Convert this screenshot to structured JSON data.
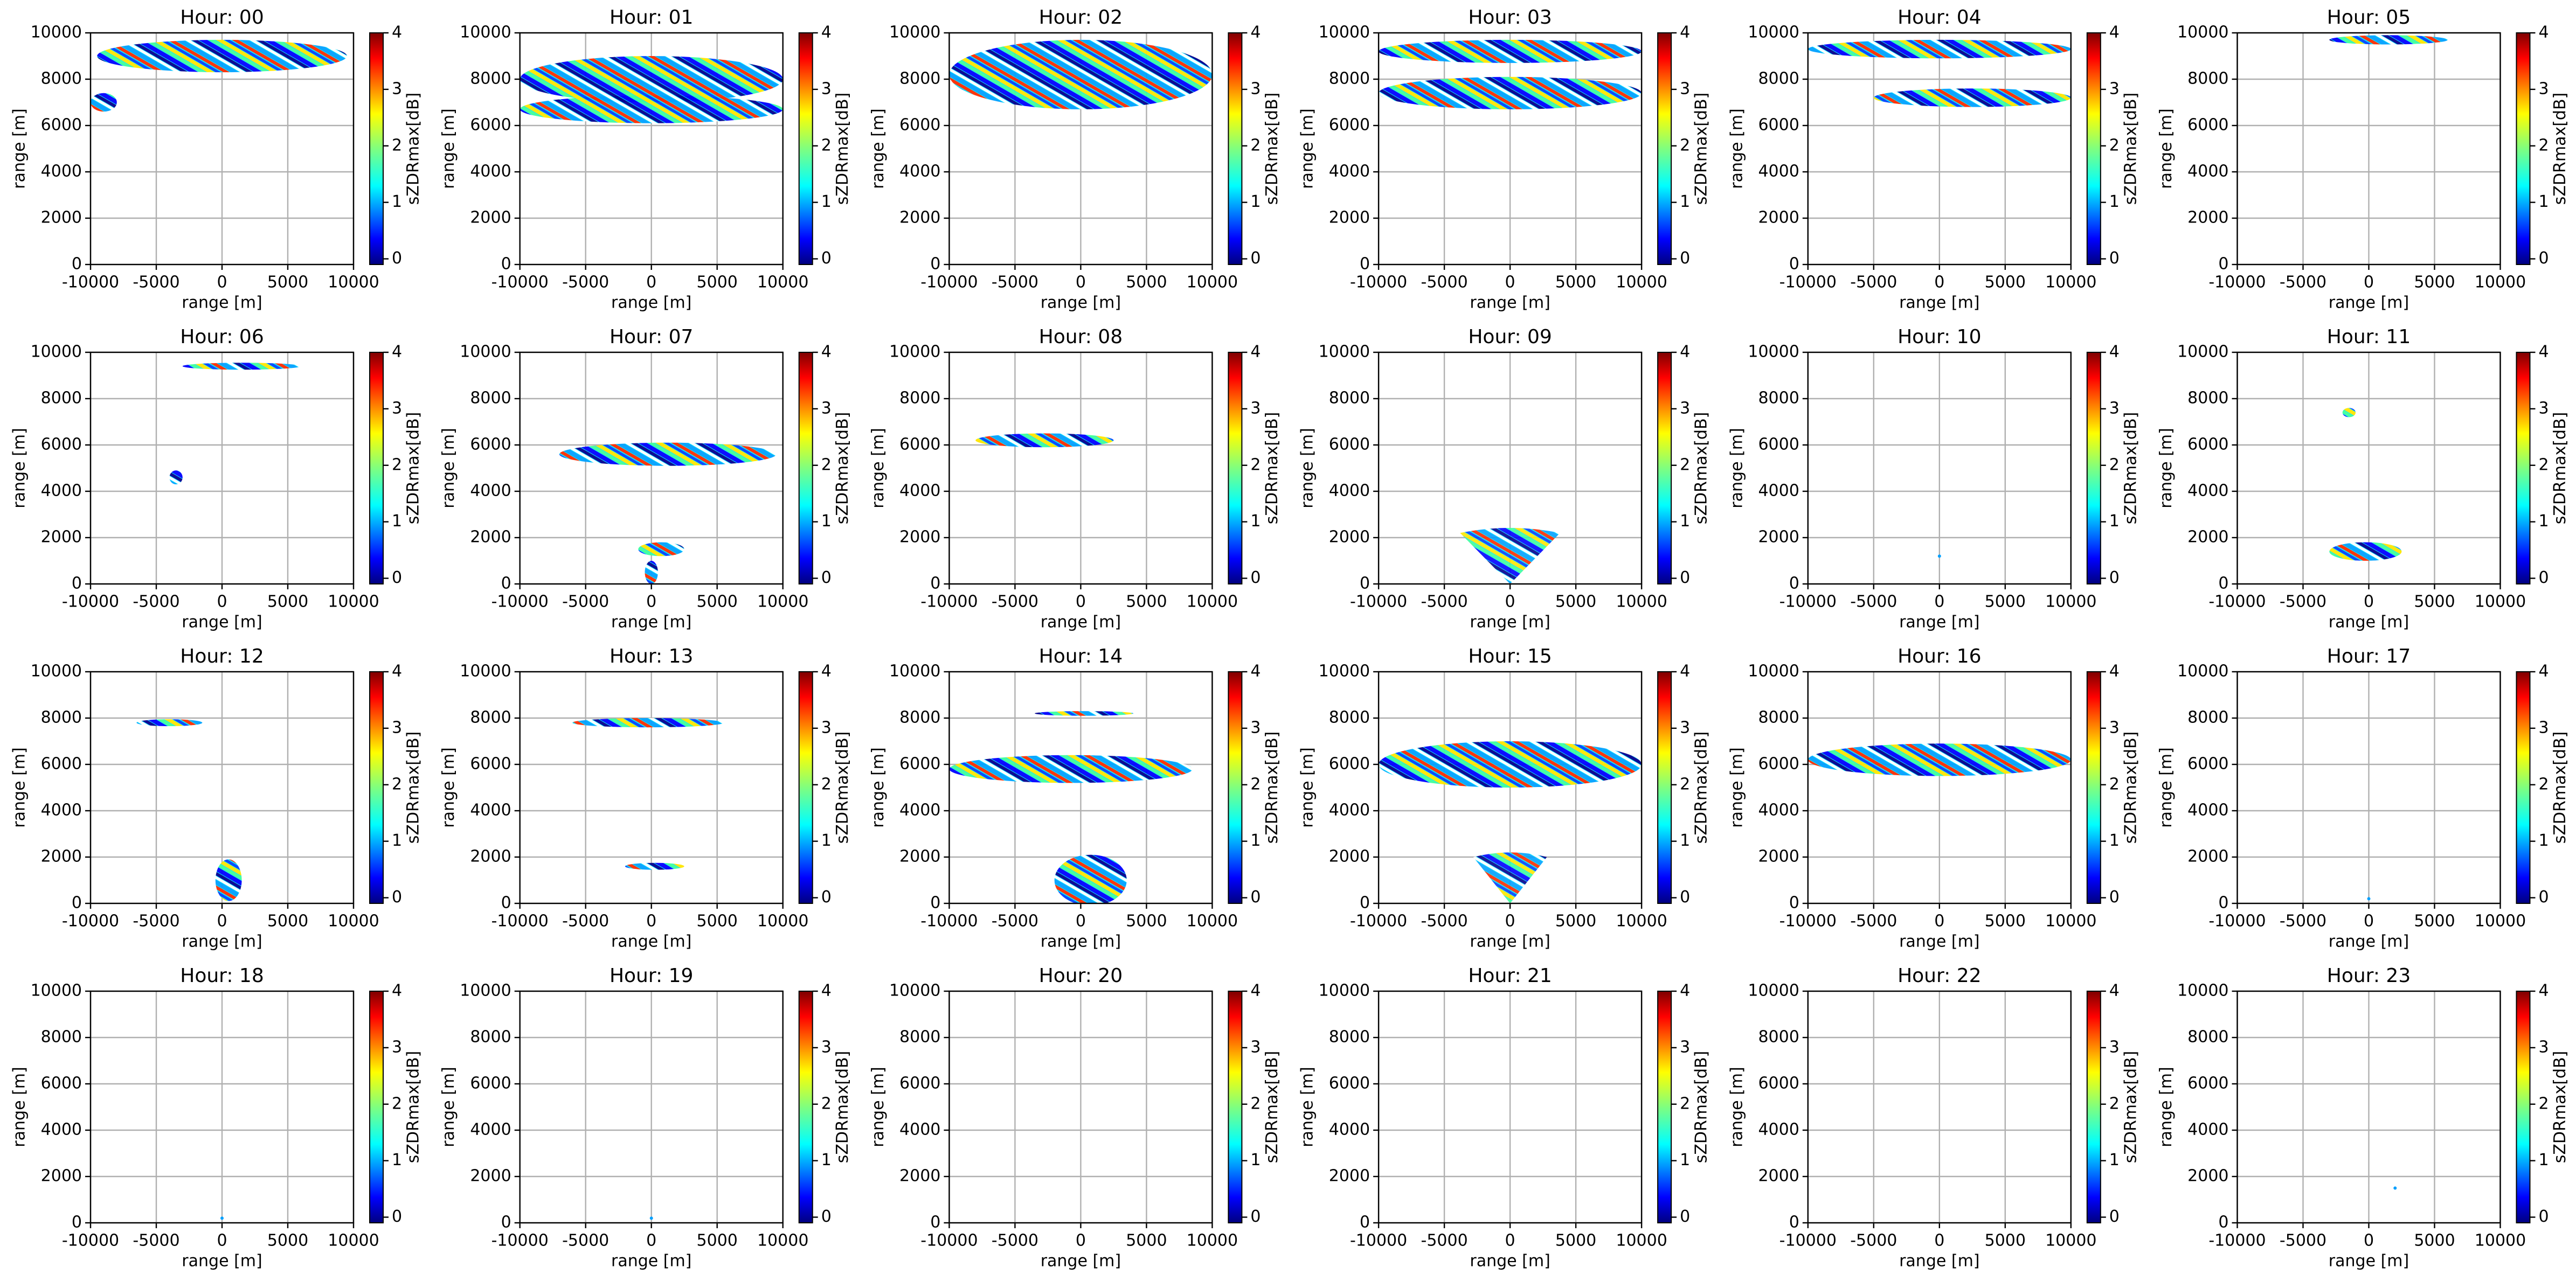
{
  "chart_data": [
    {
      "type": "heatmap",
      "title": "Hour: 00",
      "xlabel": "range [m]",
      "ylabel": "range [m]",
      "xlim": [
        -10000,
        10000
      ],
      "xticks": [
        -10000,
        -5000,
        0,
        5000,
        10000
      ],
      "ylim": [
        0,
        10000
      ],
      "yticks": [
        0,
        2000,
        4000,
        6000,
        8000,
        10000
      ],
      "colorbar_label": "sZDRmax[dB]",
      "clim": [
        -0.1,
        4
      ],
      "cticks": [
        0,
        1,
        2,
        3,
        4
      ],
      "colormap": "jet",
      "grid": true
    },
    {
      "type": "heatmap",
      "title": "Hour: 01",
      "xlabel": "range [m]",
      "ylabel": "range [m]",
      "xlim": [
        -10000,
        10000
      ],
      "xticks": [
        -10000,
        -5000,
        0,
        5000,
        10000
      ],
      "ylim": [
        0,
        10000
      ],
      "yticks": [
        0,
        2000,
        4000,
        6000,
        8000,
        10000
      ],
      "colorbar_label": "sZDRmax[dB]",
      "clim": [
        -0.1,
        4
      ],
      "cticks": [
        0,
        1,
        2,
        3,
        4
      ],
      "colormap": "jet",
      "grid": true
    },
    {
      "type": "heatmap",
      "title": "Hour: 02",
      "xlabel": "range [m]",
      "ylabel": "range [m]",
      "xlim": [
        -10000,
        10000
      ],
      "xticks": [
        -10000,
        -5000,
        0,
        5000,
        10000
      ],
      "ylim": [
        0,
        10000
      ],
      "yticks": [
        0,
        2000,
        4000,
        6000,
        8000,
        10000
      ],
      "colorbar_label": "sZDRmax[dB]",
      "clim": [
        -0.1,
        4
      ],
      "cticks": [
        0,
        1,
        2,
        3,
        4
      ],
      "colormap": "jet",
      "grid": true
    },
    {
      "type": "heatmap",
      "title": "Hour: 03",
      "xlabel": "range [m]",
      "ylabel": "range [m]",
      "xlim": [
        -10000,
        10000
      ],
      "xticks": [
        -10000,
        -5000,
        0,
        5000,
        10000
      ],
      "ylim": [
        0,
        10000
      ],
      "yticks": [
        0,
        2000,
        4000,
        6000,
        8000,
        10000
      ],
      "colorbar_label": "sZDRmax[dB]",
      "clim": [
        -0.1,
        4
      ],
      "cticks": [
        0,
        1,
        2,
        3,
        4
      ],
      "colormap": "jet",
      "grid": true
    },
    {
      "type": "heatmap",
      "title": "Hour: 04",
      "xlabel": "range [m]",
      "ylabel": "range [m]",
      "xlim": [
        -10000,
        10000
      ],
      "xticks": [
        -10000,
        -5000,
        0,
        5000,
        10000
      ],
      "ylim": [
        0,
        10000
      ],
      "yticks": [
        0,
        2000,
        4000,
        6000,
        8000,
        10000
      ],
      "colorbar_label": "sZDRmax[dB]",
      "clim": [
        -0.1,
        4
      ],
      "cticks": [
        0,
        1,
        2,
        3,
        4
      ],
      "colormap": "jet",
      "grid": true
    },
    {
      "type": "heatmap",
      "title": "Hour: 05",
      "xlabel": "range [m]",
      "ylabel": "range [m]",
      "xlim": [
        -10000,
        10000
      ],
      "xticks": [
        -10000,
        -5000,
        0,
        5000,
        10000
      ],
      "ylim": [
        0,
        10000
      ],
      "yticks": [
        0,
        2000,
        4000,
        6000,
        8000,
        10000
      ],
      "colorbar_label": "sZDRmax[dB]",
      "clim": [
        -0.1,
        4
      ],
      "cticks": [
        0,
        1,
        2,
        3,
        4
      ],
      "colormap": "jet",
      "grid": true
    },
    {
      "type": "heatmap",
      "title": "Hour: 06",
      "xlabel": "range [m]",
      "ylabel": "range [m]",
      "xlim": [
        -10000,
        10000
      ],
      "xticks": [
        -10000,
        -5000,
        0,
        5000,
        10000
      ],
      "ylim": [
        0,
        10000
      ],
      "yticks": [
        0,
        2000,
        4000,
        6000,
        8000,
        10000
      ],
      "colorbar_label": "sZDRmax[dB]",
      "clim": [
        -0.1,
        4
      ],
      "cticks": [
        0,
        1,
        2,
        3,
        4
      ],
      "colormap": "jet",
      "grid": true
    },
    {
      "type": "heatmap",
      "title": "Hour: 07",
      "xlabel": "range [m]",
      "ylabel": "range [m]",
      "xlim": [
        -10000,
        10000
      ],
      "xticks": [
        -10000,
        -5000,
        0,
        5000,
        10000
      ],
      "ylim": [
        0,
        10000
      ],
      "yticks": [
        0,
        2000,
        4000,
        6000,
        8000,
        10000
      ],
      "colorbar_label": "sZDRmax[dB]",
      "clim": [
        -0.1,
        4
      ],
      "cticks": [
        0,
        1,
        2,
        3,
        4
      ],
      "colormap": "jet",
      "grid": true
    },
    {
      "type": "heatmap",
      "title": "Hour: 08",
      "xlabel": "range [m]",
      "ylabel": "range [m]",
      "xlim": [
        -10000,
        10000
      ],
      "xticks": [
        -10000,
        -5000,
        0,
        5000,
        10000
      ],
      "ylim": [
        0,
        10000
      ],
      "yticks": [
        0,
        2000,
        4000,
        6000,
        8000,
        10000
      ],
      "colorbar_label": "sZDRmax[dB]",
      "clim": [
        -0.1,
        4
      ],
      "cticks": [
        0,
        1,
        2,
        3,
        4
      ],
      "colormap": "jet",
      "grid": true
    },
    {
      "type": "heatmap",
      "title": "Hour: 09",
      "xlabel": "range [m]",
      "ylabel": "range [m]",
      "xlim": [
        -10000,
        10000
      ],
      "xticks": [
        -10000,
        -5000,
        0,
        5000,
        10000
      ],
      "ylim": [
        0,
        10000
      ],
      "yticks": [
        0,
        2000,
        4000,
        6000,
        8000,
        10000
      ],
      "colorbar_label": "sZDRmax[dB]",
      "clim": [
        -0.1,
        4
      ],
      "cticks": [
        0,
        1,
        2,
        3,
        4
      ],
      "colormap": "jet",
      "grid": true
    },
    {
      "type": "heatmap",
      "title": "Hour: 10",
      "xlabel": "range [m]",
      "ylabel": "range [m]",
      "xlim": [
        -10000,
        10000
      ],
      "xticks": [
        -10000,
        -5000,
        0,
        5000,
        10000
      ],
      "ylim": [
        0,
        10000
      ],
      "yticks": [
        0,
        2000,
        4000,
        6000,
        8000,
        10000
      ],
      "colorbar_label": "sZDRmax[dB]",
      "clim": [
        -0.1,
        4
      ],
      "cticks": [
        0,
        1,
        2,
        3,
        4
      ],
      "colormap": "jet",
      "grid": true
    },
    {
      "type": "heatmap",
      "title": "Hour: 11",
      "xlabel": "range [m]",
      "ylabel": "range [m]",
      "xlim": [
        -10000,
        10000
      ],
      "xticks": [
        -10000,
        -5000,
        0,
        5000,
        10000
      ],
      "ylim": [
        0,
        10000
      ],
      "yticks": [
        0,
        2000,
        4000,
        6000,
        8000,
        10000
      ],
      "colorbar_label": "sZDRmax[dB]",
      "clim": [
        -0.1,
        4
      ],
      "cticks": [
        0,
        1,
        2,
        3,
        4
      ],
      "colormap": "jet",
      "grid": true
    },
    {
      "type": "heatmap",
      "title": "Hour: 12",
      "xlabel": "range [m]",
      "ylabel": "range [m]",
      "xlim": [
        -10000,
        10000
      ],
      "xticks": [
        -10000,
        -5000,
        0,
        5000,
        10000
      ],
      "ylim": [
        0,
        10000
      ],
      "yticks": [
        0,
        2000,
        4000,
        6000,
        8000,
        10000
      ],
      "colorbar_label": "sZDRmax[dB]",
      "clim": [
        -0.1,
        4
      ],
      "cticks": [
        0,
        1,
        2,
        3,
        4
      ],
      "colormap": "jet",
      "grid": true
    },
    {
      "type": "heatmap",
      "title": "Hour: 13",
      "xlabel": "range [m]",
      "ylabel": "range [m]",
      "xlim": [
        -10000,
        10000
      ],
      "xticks": [
        -10000,
        -5000,
        0,
        5000,
        10000
      ],
      "ylim": [
        0,
        10000
      ],
      "yticks": [
        0,
        2000,
        4000,
        6000,
        8000,
        10000
      ],
      "colorbar_label": "sZDRmax[dB]",
      "clim": [
        -0.1,
        4
      ],
      "cticks": [
        0,
        1,
        2,
        3,
        4
      ],
      "colormap": "jet",
      "grid": true
    },
    {
      "type": "heatmap",
      "title": "Hour: 14",
      "xlabel": "range [m]",
      "ylabel": "range [m]",
      "xlim": [
        -10000,
        10000
      ],
      "xticks": [
        -10000,
        -5000,
        0,
        5000,
        10000
      ],
      "ylim": [
        0,
        10000
      ],
      "yticks": [
        0,
        2000,
        4000,
        6000,
        8000,
        10000
      ],
      "colorbar_label": "sZDRmax[dB]",
      "clim": [
        -0.1,
        4
      ],
      "cticks": [
        0,
        1,
        2,
        3,
        4
      ],
      "colormap": "jet",
      "grid": true
    },
    {
      "type": "heatmap",
      "title": "Hour: 15",
      "xlabel": "range [m]",
      "ylabel": "range [m]",
      "xlim": [
        -10000,
        10000
      ],
      "xticks": [
        -10000,
        -5000,
        0,
        5000,
        10000
      ],
      "ylim": [
        0,
        10000
      ],
      "yticks": [
        0,
        2000,
        4000,
        6000,
        8000,
        10000
      ],
      "colorbar_label": "sZDRmax[dB]",
      "clim": [
        -0.1,
        4
      ],
      "cticks": [
        0,
        1,
        2,
        3,
        4
      ],
      "colormap": "jet",
      "grid": true
    },
    {
      "type": "heatmap",
      "title": "Hour: 16",
      "xlabel": "range [m]",
      "ylabel": "range [m]",
      "xlim": [
        -10000,
        10000
      ],
      "xticks": [
        -10000,
        -5000,
        0,
        5000,
        10000
      ],
      "ylim": [
        0,
        10000
      ],
      "yticks": [
        0,
        2000,
        4000,
        6000,
        8000,
        10000
      ],
      "colorbar_label": "sZDRmax[dB]",
      "clim": [
        -0.1,
        4
      ],
      "cticks": [
        0,
        1,
        2,
        3,
        4
      ],
      "colormap": "jet",
      "grid": true
    },
    {
      "type": "heatmap",
      "title": "Hour: 17",
      "xlabel": "range [m]",
      "ylabel": "range [m]",
      "xlim": [
        -10000,
        10000
      ],
      "xticks": [
        -10000,
        -5000,
        0,
        5000,
        10000
      ],
      "ylim": [
        0,
        10000
      ],
      "yticks": [
        0,
        2000,
        4000,
        6000,
        8000,
        10000
      ],
      "colorbar_label": "sZDRmax[dB]",
      "clim": [
        -0.1,
        4
      ],
      "cticks": [
        0,
        1,
        2,
        3,
        4
      ],
      "colormap": "jet",
      "grid": true
    },
    {
      "type": "heatmap",
      "title": "Hour: 18",
      "xlabel": "range [m]",
      "ylabel": "range [m]",
      "xlim": [
        -10000,
        10000
      ],
      "xticks": [
        -10000,
        -5000,
        0,
        5000,
        10000
      ],
      "ylim": [
        0,
        10000
      ],
      "yticks": [
        0,
        2000,
        4000,
        6000,
        8000,
        10000
      ],
      "colorbar_label": "sZDRmax[dB]",
      "clim": [
        -0.1,
        4
      ],
      "cticks": [
        0,
        1,
        2,
        3,
        4
      ],
      "colormap": "jet",
      "grid": true
    },
    {
      "type": "heatmap",
      "title": "Hour: 19",
      "xlabel": "range [m]",
      "ylabel": "range [m]",
      "xlim": [
        -10000,
        10000
      ],
      "xticks": [
        -10000,
        -5000,
        0,
        5000,
        10000
      ],
      "ylim": [
        0,
        10000
      ],
      "yticks": [
        0,
        2000,
        4000,
        6000,
        8000,
        10000
      ],
      "colorbar_label": "sZDRmax[dB]",
      "clim": [
        -0.1,
        4
      ],
      "cticks": [
        0,
        1,
        2,
        3,
        4
      ],
      "colormap": "jet",
      "grid": true
    },
    {
      "type": "heatmap",
      "title": "Hour: 20",
      "xlabel": "range [m]",
      "ylabel": "range [m]",
      "xlim": [
        -10000,
        10000
      ],
      "xticks": [
        -10000,
        -5000,
        0,
        5000,
        10000
      ],
      "ylim": [
        0,
        10000
      ],
      "yticks": [
        0,
        2000,
        4000,
        6000,
        8000,
        10000
      ],
      "colorbar_label": "sZDRmax[dB]",
      "clim": [
        -0.1,
        4
      ],
      "cticks": [
        0,
        1,
        2,
        3,
        4
      ],
      "colormap": "jet",
      "grid": true
    },
    {
      "type": "heatmap",
      "title": "Hour: 21",
      "xlabel": "range [m]",
      "ylabel": "range [m]",
      "xlim": [
        -10000,
        10000
      ],
      "xticks": [
        -10000,
        -5000,
        0,
        5000,
        10000
      ],
      "ylim": [
        0,
        10000
      ],
      "yticks": [
        0,
        2000,
        4000,
        6000,
        8000,
        10000
      ],
      "colorbar_label": "sZDRmax[dB]",
      "clim": [
        -0.1,
        4
      ],
      "cticks": [
        0,
        1,
        2,
        3,
        4
      ],
      "colormap": "jet",
      "grid": true
    },
    {
      "type": "heatmap",
      "title": "Hour: 22",
      "xlabel": "range [m]",
      "ylabel": "range [m]",
      "xlim": [
        -10000,
        10000
      ],
      "xticks": [
        -10000,
        -5000,
        0,
        5000,
        10000
      ],
      "ylim": [
        0,
        10000
      ],
      "yticks": [
        0,
        2000,
        4000,
        6000,
        8000,
        10000
      ],
      "colorbar_label": "sZDRmax[dB]",
      "clim": [
        -0.1,
        4
      ],
      "cticks": [
        0,
        1,
        2,
        3,
        4
      ],
      "colormap": "jet",
      "grid": true
    },
    {
      "type": "heatmap",
      "title": "Hour: 23",
      "xlabel": "range [m]",
      "ylabel": "range [m]",
      "xlim": [
        -10000,
        10000
      ],
      "xticks": [
        -10000,
        -5000,
        0,
        5000,
        10000
      ],
      "ylim": [
        0,
        10000
      ],
      "yticks": [
        0,
        2000,
        4000,
        6000,
        8000,
        10000
      ],
      "colorbar_label": "sZDRmax[dB]",
      "clim": [
        -0.1,
        4
      ],
      "cticks": [
        0,
        1,
        2,
        3,
        4
      ],
      "colormap": "jet",
      "grid": true
    }
  ]
}
